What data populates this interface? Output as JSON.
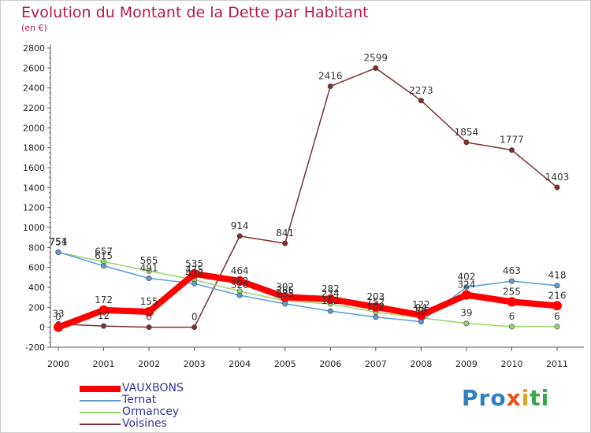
{
  "title": "Evolution du Montant de la Dette par Habitant",
  "unit": "(en €)",
  "brand": {
    "text": "Proxiti",
    "colors": [
      "#2f7fc1",
      "#e8a21a",
      "#e94e1b",
      "#3aa64a"
    ]
  },
  "chart_data": {
    "type": "line",
    "title": "Evolution du Montant de la Dette par Habitant",
    "ylabel": "(en €)",
    "xlabel": "",
    "x": [
      "2000",
      "2001",
      "2002",
      "2003",
      "2004",
      "2005",
      "2006",
      "2007",
      "2008",
      "2009",
      "2010",
      "2011"
    ],
    "ylim": [
      -200,
      2800
    ],
    "yticks": [
      -200,
      0,
      200,
      400,
      600,
      800,
      1000,
      1200,
      1400,
      1600,
      1800,
      2000,
      2200,
      2400,
      2600,
      2800
    ],
    "grid": false,
    "legend": "bottom-left",
    "series": [
      {
        "name": "VAUXBONS",
        "color": "#ff0000",
        "width": 8,
        "values": [
          0,
          172,
          155,
          535,
          464,
          302,
          282,
          203,
          122,
          324,
          255,
          216
        ],
        "labels": [
          "0",
          "172",
          "155",
          "535",
          "464",
          "302",
          "282",
          "203",
          "122",
          "324",
          "255",
          "216"
        ]
      },
      {
        "name": "Ternat",
        "color": "#5b9bd5",
        "width": 1.5,
        "values": [
          754,
          615,
          491,
          438,
          320,
          235,
          162,
          102,
          56,
          402,
          463,
          418
        ],
        "labels": [
          "754",
          "615",
          "491",
          "438",
          "320",
          "235",
          "162",
          "102",
          "56",
          "402",
          "463",
          "418"
        ]
      },
      {
        "name": "Ormancey",
        "color": "#99d36b",
        "width": 1.5,
        "values": [
          751,
          657,
          565,
          475,
          362,
          265,
          234,
          152,
          94,
          39,
          6,
          6
        ],
        "labels": [
          "751",
          "657",
          "565",
          "475",
          "362",
          "265",
          "234",
          "152",
          "94",
          "39",
          "6",
          "6"
        ]
      },
      {
        "name": "Voisines",
        "color": "#7f2e2e",
        "width": 1.5,
        "values": [
          33,
          12,
          0,
          0,
          914,
          841,
          2416,
          2599,
          2273,
          1854,
          1777,
          1403
        ],
        "labels": [
          "33",
          "12",
          "0",
          "0",
          "914",
          "841",
          "2416",
          "2599",
          "2273",
          "1854",
          "1777",
          "1403"
        ]
      }
    ]
  }
}
